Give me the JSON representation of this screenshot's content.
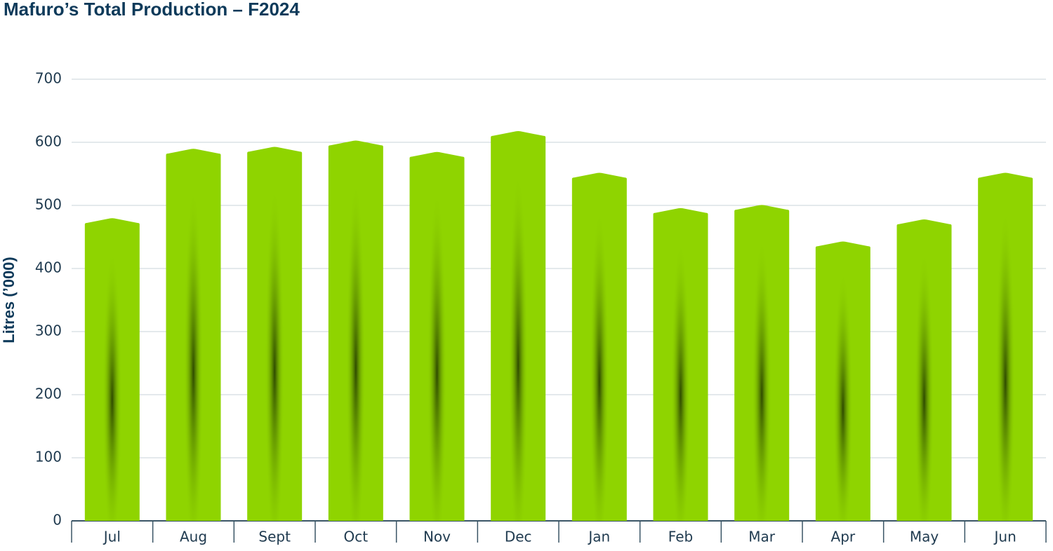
{
  "chart_data": {
    "type": "bar",
    "title": "Mafuro’s Total Production – F2024",
    "y_label": "Litres (’000)",
    "categories": [
      "Jul",
      "Aug",
      "Sept",
      "Oct",
      "Nov",
      "Dec",
      "Jan",
      "Feb",
      "Mar",
      "Apr",
      "May",
      "Jun"
    ],
    "values": [
      480,
      590,
      593,
      603,
      585,
      618,
      552,
      496,
      501,
      443,
      478,
      552
    ],
    "color": "#8fd400",
    "ylim": [
      0,
      700
    ],
    "yticks": [
      0,
      100,
      200,
      300,
      400,
      500,
      600,
      700
    ],
    "grid": true
  }
}
